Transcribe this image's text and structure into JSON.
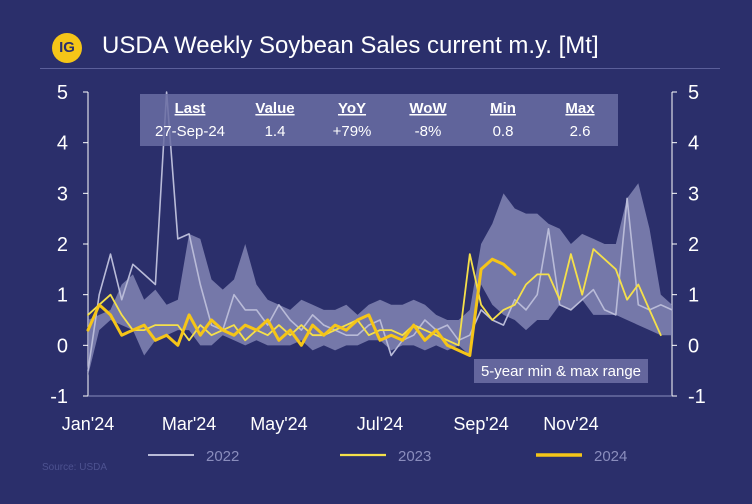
{
  "header": {
    "logo_text": "IG",
    "title": "USDA Weekly Soybean Sales current m.y.  [Mt]"
  },
  "source": "Source:  USDA",
  "colors": {
    "background": "#2b2f6b",
    "series_2022": "#b9bbd8",
    "series_2023": "#f5e04a",
    "series_2024": "#f5c518",
    "range_band": "#8f92be",
    "stats_box": "#6a6da3"
  },
  "stats_table": {
    "headers": [
      "Last",
      "Value",
      "YoY",
      "WoW",
      "Min",
      "Max"
    ],
    "values": [
      "27-Sep-24",
      "1.4",
      "+79%",
      "-8%",
      "0.8",
      "2.6"
    ]
  },
  "range_label": "5-year min & max range",
  "chart_data": {
    "type": "line",
    "title": "USDA Weekly Soybean Sales current m.y.  [Mt]",
    "xlabel": "",
    "ylabel": "",
    "x_ticks": [
      "Jan'24",
      "Mar'24",
      "May'24",
      "Jul'24",
      "Sep'24",
      "Nov'24"
    ],
    "x_tick_weeks": [
      0,
      9,
      17,
      26,
      35,
      43
    ],
    "xlim": [
      0,
      52
    ],
    "ylim": [
      -1,
      5
    ],
    "y_ticks": [
      -1,
      0,
      1,
      2,
      3,
      4,
      5
    ],
    "grid": false,
    "legend_position": "bottom",
    "range_band": {
      "name": "5-year min & max range",
      "max": [
        0.5,
        0.6,
        0.7,
        1.2,
        1.4,
        0.9,
        1.1,
        0.8,
        0.9,
        2.2,
        2.1,
        1.3,
        1.1,
        1.3,
        2.0,
        1.2,
        0.9,
        0.8,
        0.7,
        0.9,
        0.8,
        0.7,
        0.7,
        0.8,
        0.6,
        0.8,
        0.9,
        0.8,
        0.8,
        0.9,
        0.8,
        0.6,
        0.5,
        0.5,
        0.7,
        2.0,
        2.4,
        3.0,
        2.7,
        2.6,
        2.6,
        2.4,
        2.3,
        2.0,
        2.2,
        2.1,
        2.0,
        2.0,
        2.9,
        3.2,
        2.3,
        1.0,
        0.8
      ],
      "min": [
        -0.6,
        0.3,
        0.5,
        0.4,
        0.3,
        -0.2,
        0.1,
        0.2,
        0.3,
        0.3,
        0.0,
        0.0,
        0.2,
        0.1,
        0.0,
        0.1,
        0.0,
        0.0,
        0.0,
        0.1,
        -0.1,
        0.0,
        -0.1,
        0.0,
        0.0,
        0.1,
        0.1,
        -0.1,
        0.0,
        0.0,
        -0.1,
        0.0,
        -0.1,
        0.0,
        -0.2,
        1.2,
        0.8,
        0.6,
        0.5,
        0.3,
        0.5,
        0.5,
        0.8,
        0.7,
        0.9,
        0.6,
        0.6,
        0.6,
        0.5,
        0.4,
        0.3,
        0.2,
        0.2
      ]
    },
    "series": [
      {
        "name": "2022",
        "values": [
          -0.5,
          1.0,
          1.8,
          0.9,
          1.6,
          1.4,
          1.2,
          5.0,
          2.1,
          2.2,
          1.2,
          0.4,
          0.3,
          1.0,
          0.7,
          0.7,
          0.4,
          0.8,
          0.5,
          0.3,
          0.6,
          0.4,
          0.3,
          0.2,
          0.2,
          0.4,
          0.5,
          -0.2,
          0.1,
          0.2,
          0.5,
          0.3,
          0.4,
          0.1,
          0.2,
          0.7,
          0.5,
          0.4,
          0.9,
          0.7,
          1.0,
          2.3,
          0.8,
          0.7,
          0.9,
          1.1,
          0.7,
          0.6,
          2.9,
          0.8,
          0.7,
          0.8,
          0.7
        ]
      },
      {
        "name": "2023",
        "values": [
          0.6,
          0.8,
          1.0,
          0.6,
          0.3,
          0.3,
          0.4,
          0.4,
          0.4,
          0.1,
          0.4,
          0.2,
          0.3,
          0.4,
          0.1,
          0.3,
          0.2,
          0.4,
          0.2,
          0.4,
          0.2,
          0.2,
          0.3,
          0.4,
          0.5,
          0.2,
          0.3,
          0.3,
          0.2,
          0.4,
          0.3,
          0.2,
          0.1,
          0.0,
          1.8,
          0.8,
          0.5,
          0.7,
          0.8,
          1.2,
          1.4,
          1.4,
          0.9,
          1.8,
          1.0,
          1.9,
          1.7,
          1.5,
          0.9,
          1.2,
          0.7,
          0.2
        ]
      },
      {
        "name": "2024",
        "values": [
          0.3,
          0.8,
          0.6,
          0.2,
          0.3,
          0.4,
          0.1,
          0.2,
          0.0,
          0.6,
          0.2,
          0.5,
          0.3,
          0.2,
          0.4,
          0.3,
          0.5,
          0.1,
          0.3,
          0.0,
          0.4,
          0.2,
          0.4,
          0.3,
          0.5,
          0.6,
          0.1,
          0.2,
          0.1,
          0.4,
          0.1,
          0.3,
          0.0,
          -0.1,
          -0.2,
          1.5,
          1.7,
          1.6,
          1.4
        ]
      }
    ]
  }
}
